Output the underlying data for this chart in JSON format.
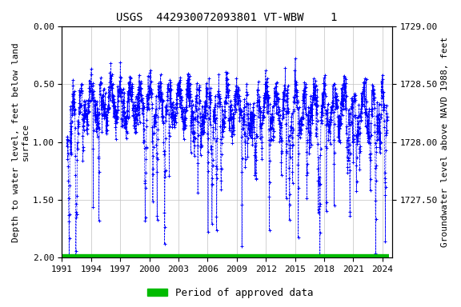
{
  "title": "USGS  442930072093801 VT-WBW    1",
  "ylabel_left": "Depth to water level, feet below land\nsurface",
  "ylabel_right": "Groundwater level above NAVD 1988, feet",
  "ylim_left": [
    0.0,
    2.0
  ],
  "ylim_right": [
    1727.0,
    1729.0
  ],
  "yticks_left": [
    0.0,
    0.5,
    1.0,
    1.5,
    2.0
  ],
  "yticks_right": [
    1727.5,
    1728.0,
    1728.5,
    1729.0
  ],
  "xticks": [
    1991,
    1994,
    1997,
    2000,
    2003,
    2006,
    2009,
    2012,
    2015,
    2018,
    2021,
    2024
  ],
  "xlim": [
    1991.0,
    2025.0
  ],
  "data_color": "#0000ff",
  "bar_color": "#00bb00",
  "background_color": "#ffffff",
  "grid_color": "#c0c0c0",
  "title_fontsize": 10,
  "axis_fontsize": 8,
  "tick_fontsize": 8,
  "legend_label": "Period of approved data",
  "seed": 12345
}
